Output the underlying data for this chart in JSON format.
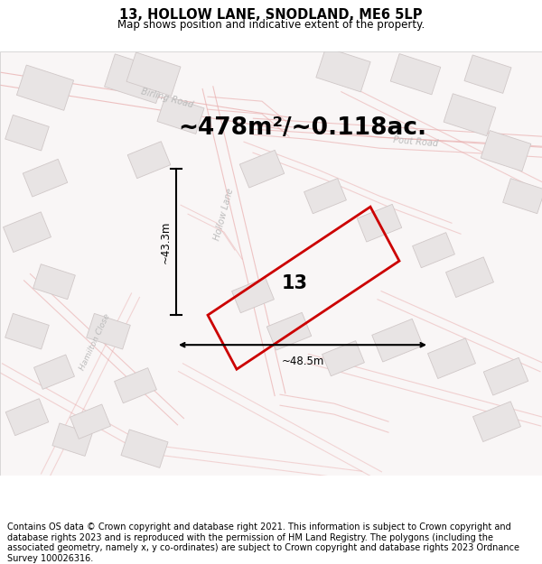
{
  "title": "13, HOLLOW LANE, SNODLAND, ME6 5LP",
  "subtitle": "Map shows position and indicative extent of the property.",
  "area_text": "~478m²/~0.118ac.",
  "property_number": "13",
  "dim_width": "~48.5m",
  "dim_height": "~43.3m",
  "footer": "Contains OS data © Crown copyright and database right 2021. This information is subject to Crown copyright and database rights 2023 and is reproduced with the permission of HM Land Registry. The polygons (including the associated geometry, namely x, y co-ordinates) are subject to Crown copyright and database rights 2023 Ordnance Survey 100026316.",
  "bg_color": "#ffffff",
  "map_bg": "#f9f6f6",
  "road_color": "#e8aaaa",
  "building_color": "#e8e4e4",
  "building_edge": "#d0c8c8",
  "highlight_color": "#cc0000",
  "dim_color": "#111111",
  "title_fontsize": 10.5,
  "subtitle_fontsize": 8.5,
  "area_fontsize": 19,
  "footer_fontsize": 7.0,
  "road_label_color": "#bbbbbb",
  "road_linewidth": 1.0
}
